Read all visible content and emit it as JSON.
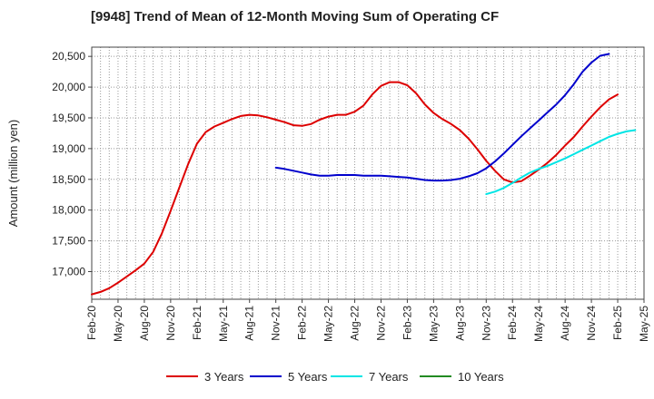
{
  "chart_data": {
    "type": "line",
    "title": "[9948]  Trend of Mean of 12-Month Moving Sum of Operating CF",
    "ylabel": "Amount (million yen)",
    "xlabel": "",
    "ylim": [
      16550,
      20650
    ],
    "y_ticks": [
      17000,
      17500,
      18000,
      18500,
      19000,
      19500,
      20000,
      20500
    ],
    "y_tick_labels": [
      "17,000",
      "17,500",
      "18,000",
      "18,500",
      "19,000",
      "19,500",
      "20,000",
      "20,500"
    ],
    "x_start": "Feb-20",
    "x_count_months": 63,
    "x_tick_labels": [
      "Feb-20",
      "May-20",
      "Aug-20",
      "Nov-20",
      "Feb-21",
      "May-21",
      "Aug-21",
      "Nov-21",
      "Feb-22",
      "May-22",
      "Aug-22",
      "Nov-22",
      "Feb-23",
      "May-23",
      "Aug-23",
      "Nov-23",
      "Feb-24",
      "May-24",
      "Aug-24",
      "Nov-24",
      "Feb-25",
      "May-25"
    ],
    "grid": true,
    "legend_position": "bottom",
    "series": [
      {
        "name": "3 Years",
        "color": "#dd0000",
        "start_index": 0,
        "values": [
          16630,
          16670,
          16730,
          16820,
          16920,
          17020,
          17130,
          17320,
          17620,
          17990,
          18370,
          18750,
          19080,
          19270,
          19360,
          19420,
          19480,
          19530,
          19550,
          19540,
          19510,
          19470,
          19430,
          19380,
          19370,
          19400,
          19470,
          19520,
          19550,
          19550,
          19600,
          19700,
          19880,
          20020,
          20080,
          20080,
          20030,
          19900,
          19720,
          19580,
          19480,
          19400,
          19300,
          19160,
          18990,
          18800,
          18640,
          18500,
          18450,
          18470,
          18560,
          18660,
          18770,
          18900,
          19050,
          19190,
          19360,
          19520,
          19670,
          19800,
          19880
        ]
      },
      {
        "name": "5 Years",
        "color": "#0000cc",
        "start_index": 21,
        "values": [
          18690,
          18670,
          18640,
          18610,
          18580,
          18560,
          18560,
          18570,
          18570,
          18570,
          18560,
          18560,
          18560,
          18550,
          18540,
          18530,
          18510,
          18490,
          18480,
          18480,
          18490,
          18510,
          18550,
          18600,
          18680,
          18790,
          18920,
          19060,
          19200,
          19330,
          19460,
          19590,
          19720,
          19870,
          20050,
          20250,
          20400,
          20510,
          20540
        ]
      },
      {
        "name": "7 Years",
        "color": "#00e5e5",
        "start_index": 45,
        "values": [
          18260,
          18300,
          18360,
          18440,
          18530,
          18610,
          18670,
          18720,
          18780,
          18840,
          18910,
          18980,
          19050,
          19120,
          19190,
          19240,
          19280,
          19300
        ]
      },
      {
        "name": "10 Years",
        "color": "#228b22",
        "start_index": 0,
        "values": []
      }
    ]
  }
}
